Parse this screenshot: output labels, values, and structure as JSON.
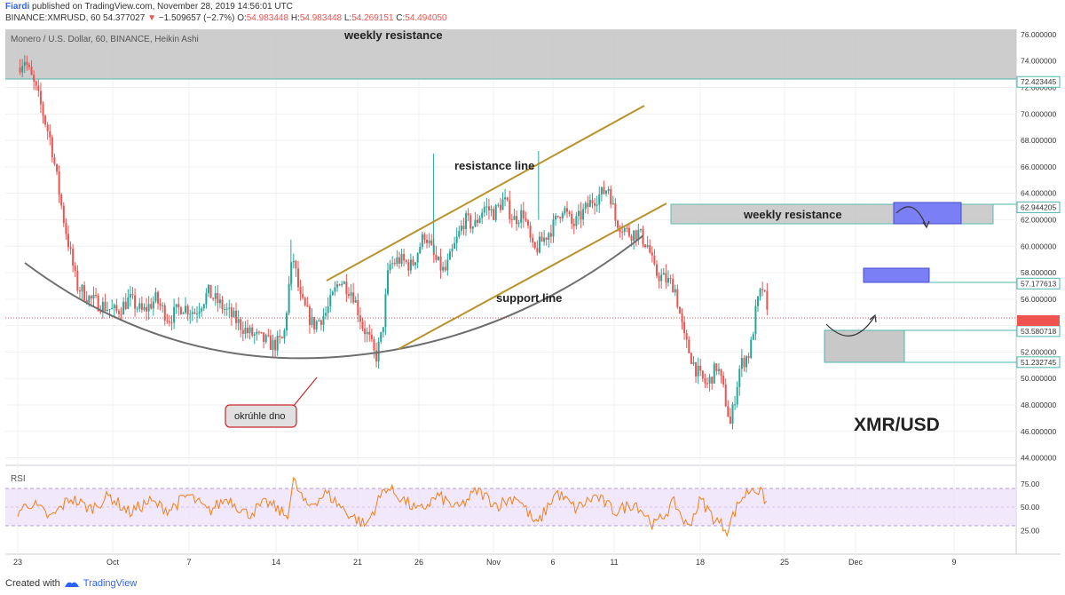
{
  "header": {
    "author": "Fiardi",
    "published_text": "published on TradingView.com, November 28, 2019 14:56:01 UTC",
    "symbol_line": "BINANCE:XMRUSD, 60",
    "last_price": "54.377027",
    "change_arrow": "▼",
    "change": "−1.509657 (−2.7%)",
    "o_label": "O:",
    "o_value": "54.983448",
    "h_label": "H:",
    "h_value": "54.983448",
    "l_label": "L:",
    "l_value": "54.269151",
    "c_label": "C:",
    "c_value": "54.494050"
  },
  "series_title": "Monero / U.S. Dollar, 60, BINANCE, Heikin Ashi",
  "rsi_title": "RSI",
  "footer": {
    "created_with": "Created with",
    "brand": "TradingView"
  },
  "colors": {
    "candle_up": "#26a69a",
    "candle_down": "#ef5350",
    "rsi_line": "#f57f17",
    "rsi_band": "#ede0fa",
    "channel": "#b8922a",
    "curve": "#666666",
    "zone_gray": "#c8c8c8",
    "zone_blue": "#7b7ff5"
  },
  "chart_data": {
    "type": "candlestick",
    "chart_type": "heikin-ashi",
    "x_ticks": [
      "23",
      "Oct",
      "7",
      "14",
      "21",
      "26",
      "Nov",
      "6",
      "11",
      "18",
      "25",
      "Dec",
      "9"
    ],
    "y_ticks": [
      "44.000000",
      "46.000000",
      "48.000000",
      "50.000000",
      "52.000000",
      "54.000000",
      "56.000000",
      "58.000000",
      "60.000000",
      "62.000000",
      "64.000000",
      "66.000000",
      "68.000000",
      "70.000000",
      "72.000000",
      "74.000000",
      "76.000000"
    ],
    "price_labels": [
      "72.423445",
      "62.944205",
      "57.177613",
      "53.580718",
      "51.232745"
    ],
    "ylim": [
      43.5,
      76.4
    ],
    "rsi_ticks": [
      "75.00",
      "50.00",
      "25.00"
    ],
    "rsi_band": [
      30,
      70
    ],
    "current_price": 54.377027,
    "price_path": [
      [
        0,
        73.5
      ],
      [
        1,
        74.2
      ],
      [
        3,
        71.5
      ],
      [
        5,
        68.0
      ],
      [
        7,
        62.0
      ],
      [
        9,
        57.0
      ],
      [
        11,
        56.0
      ],
      [
        13,
        55.5
      ],
      [
        15,
        55.0
      ],
      [
        17,
        56.0
      ],
      [
        19,
        55.0
      ],
      [
        21,
        56.0
      ],
      [
        23,
        54.5
      ],
      [
        25,
        55.5
      ],
      [
        27,
        55.0
      ],
      [
        29,
        56.5
      ],
      [
        31,
        55.5
      ],
      [
        33,
        54.5
      ],
      [
        35,
        53.5
      ],
      [
        37,
        53.0
      ],
      [
        39,
        52.5
      ],
      [
        40.5,
        53.0
      ],
      [
        41.5,
        58.0
      ],
      [
        42,
        59.0
      ],
      [
        43,
        56.0
      ],
      [
        45,
        54.0
      ],
      [
        47,
        55.0
      ],
      [
        49,
        57.5
      ],
      [
        51,
        56.5
      ],
      [
        52.5,
        54.0
      ],
      [
        53.5,
        53.0
      ],
      [
        54.5,
        51.5
      ],
      [
        55.5,
        53.5
      ],
      [
        56.5,
        58.5
      ],
      [
        58,
        59.0
      ],
      [
        60,
        58.5
      ],
      [
        62,
        61.0
      ],
      [
        63.5,
        59.0
      ],
      [
        65,
        58.0
      ],
      [
        66.5,
        60.0
      ],
      [
        68,
        62.0
      ],
      [
        69.5,
        61.5
      ],
      [
        71,
        63.0
      ],
      [
        72.5,
        62.5
      ],
      [
        74,
        63.5
      ],
      [
        75.5,
        62.0
      ],
      [
        77,
        62.5
      ],
      [
        78.5,
        59.5
      ],
      [
        80,
        60.5
      ],
      [
        81.5,
        61.5
      ],
      [
        83,
        63.0
      ],
      [
        84.5,
        61.5
      ],
      [
        86,
        62.5
      ],
      [
        87.5,
        63.5
      ],
      [
        89,
        64.0
      ],
      [
        90,
        64.5
      ],
      [
        91,
        62.0
      ],
      [
        92,
        61.5
      ],
      [
        93,
        61.0
      ],
      [
        94.5,
        61.0
      ],
      [
        96,
        60.0
      ],
      [
        97,
        58.0
      ],
      [
        98.5,
        57.5
      ],
      [
        100,
        57.0
      ],
      [
        101.5,
        53.0
      ],
      [
        103,
        51.0
      ],
      [
        104,
        50.0
      ],
      [
        105,
        49.5
      ],
      [
        106.5,
        51.0
      ],
      [
        107.5,
        49.0
      ],
      [
        108.5,
        46.5
      ],
      [
        110,
        51.0
      ],
      [
        111.5,
        52.0
      ],
      [
        112.5,
        55.5
      ],
      [
        113.5,
        57.0
      ],
      [
        114.2,
        54.4
      ]
    ],
    "rsi_path": [
      [
        0,
        45
      ],
      [
        2,
        55
      ],
      [
        5,
        38
      ],
      [
        8,
        60
      ],
      [
        11,
        48
      ],
      [
        14,
        62
      ],
      [
        17,
        44
      ],
      [
        20,
        56
      ],
      [
        23,
        47
      ],
      [
        26,
        63
      ],
      [
        29,
        45
      ],
      [
        32,
        60
      ],
      [
        35,
        42
      ],
      [
        38,
        55
      ],
      [
        41,
        40
      ],
      [
        42,
        78
      ],
      [
        44,
        50
      ],
      [
        47,
        65
      ],
      [
        50,
        45
      ],
      [
        53,
        30
      ],
      [
        56,
        72
      ],
      [
        58,
        62
      ],
      [
        61,
        45
      ],
      [
        64,
        62
      ],
      [
        67,
        48
      ],
      [
        70,
        68
      ],
      [
        73,
        52
      ],
      [
        76,
        62
      ],
      [
        79,
        30
      ],
      [
        82,
        66
      ],
      [
        85,
        48
      ],
      [
        88,
        62
      ],
      [
        91,
        45
      ],
      [
        94,
        55
      ],
      [
        97,
        30
      ],
      [
        100,
        55
      ],
      [
        102,
        28
      ],
      [
        104,
        58
      ],
      [
        106,
        38
      ],
      [
        108,
        26
      ],
      [
        110,
        58
      ],
      [
        112,
        72
      ],
      [
        113.5,
        62
      ],
      [
        114.2,
        52
      ]
    ],
    "annotations": {
      "weekly_resistance_top": "weekly resistance",
      "weekly_resistance_mid": "weekly resistance",
      "resistance_line": "resistance line",
      "support_line": "support line",
      "rounded_bottom": "okrúhle dno",
      "pair": "XMR/USD"
    }
  }
}
